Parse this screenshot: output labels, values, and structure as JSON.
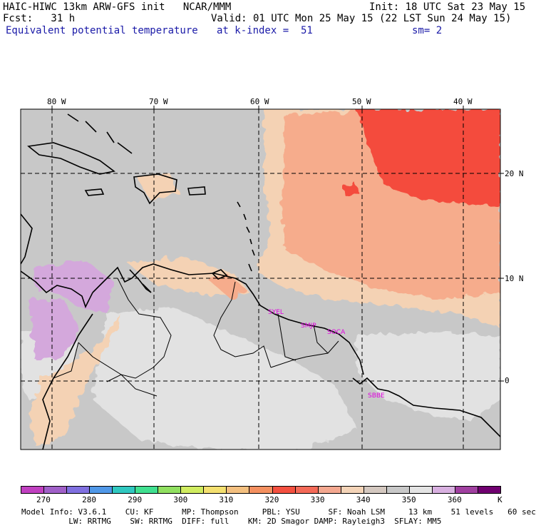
{
  "header": {
    "model_title": "HAIC-HIWC 13km ARW-GFS init   NCAR/MMM",
    "init": "Init: 18 UTC Sat 23 May 15",
    "fcst": "Fcst:   31 h",
    "valid": "Valid: 01 UTC Mon 25 May 15 (22 LST Sun 24 May 15)",
    "field": "Equivalent potential temperature",
    "level": "at k-index =  51",
    "smooth": "sm= 2"
  },
  "map": {
    "lon_labels": [
      "80 W",
      "70 W",
      "60 W",
      "50 W",
      "40 W"
    ],
    "lat_labels": [
      "20 N",
      "10 N",
      "0"
    ],
    "stations": [
      "SYEL",
      "SMJP",
      "SOCA",
      "SBBE"
    ],
    "colors": {
      "background_gray": "#c8c8c8",
      "light_gray": "#e2e2e2",
      "peach": "#f4d2b4",
      "salmon": "#f6ac8c",
      "red": "#f44c3c",
      "lavender": "#d4a8dc"
    }
  },
  "colorbar": {
    "ticks": [
      "270",
      "280",
      "290",
      "300",
      "310",
      "320",
      "330",
      "340",
      "350",
      "360"
    ],
    "unit": "K",
    "colors": [
      "#c040c0",
      "#a060c8",
      "#8070e0",
      "#5098e8",
      "#30c8c0",
      "#40e090",
      "#90e060",
      "#d0ec60",
      "#f4e070",
      "#f4c080",
      "#f49060",
      "#f45040",
      "#f46a58",
      "#f4a890",
      "#f4d4b8",
      "#d4c8c0",
      "#c8c8c8",
      "#e4e4e4",
      "#d8b0e0",
      "#a040a0",
      "#700070"
    ]
  },
  "footer": {
    "line1": "Model Info: V3.6.1    CU: KF      MP: Thompson     PBL: YSU      SF: Noah LSM     13 km    51 levels   60 sec",
    "line2": "          LW: RRTMG    SW: RRTMG  DIFF: full    KM: 2D Smagor DAMP: Rayleigh3  SFLAY: MM5"
  }
}
